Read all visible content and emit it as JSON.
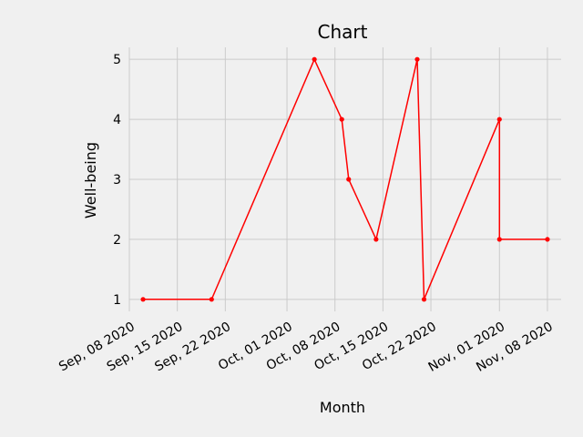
{
  "chart_data": {
    "type": "line",
    "title": "Chart",
    "xlabel": "Month",
    "ylabel": "Well-being",
    "x_scale": "date",
    "y_ticks": [
      1,
      2,
      3,
      4,
      5
    ],
    "x_ticks": [
      {
        "date": "2020-09-08",
        "label": "Sep, 08 2020"
      },
      {
        "date": "2020-09-15",
        "label": "Sep, 15 2020"
      },
      {
        "date": "2020-09-22",
        "label": "Sep, 22 2020"
      },
      {
        "date": "2020-10-01",
        "label": "Oct, 01 2020"
      },
      {
        "date": "2020-10-08",
        "label": "Oct, 08 2020"
      },
      {
        "date": "2020-10-15",
        "label": "Oct, 15 2020"
      },
      {
        "date": "2020-10-22",
        "label": "Oct, 22 2020"
      },
      {
        "date": "2020-11-01",
        "label": "Nov, 01 2020"
      },
      {
        "date": "2020-11-08",
        "label": "Nov, 08 2020"
      }
    ],
    "xlim": [
      "2020-09-08",
      "2020-11-10"
    ],
    "ylim": [
      0.8,
      5.2
    ],
    "grid": true,
    "style": {
      "background": "#f0f0f0",
      "line_color": "#ff0000",
      "grid_color": "#cbcbcb"
    },
    "series": [
      {
        "marker": "circle",
        "points": [
          {
            "x": "2020-09-10",
            "y": 1
          },
          {
            "x": "2020-09-20",
            "y": 1
          },
          {
            "x": "2020-10-05",
            "y": 5
          },
          {
            "x": "2020-10-09",
            "y": 4
          },
          {
            "x": "2020-10-10",
            "y": 3
          },
          {
            "x": "2020-10-14",
            "y": 2
          },
          {
            "x": "2020-10-20",
            "y": 5
          },
          {
            "x": "2020-10-21",
            "y": 1
          },
          {
            "x": "2020-11-01",
            "y": 4
          },
          {
            "x": "2020-11-01",
            "y": 2
          },
          {
            "x": "2020-11-08",
            "y": 2
          }
        ]
      }
    ]
  }
}
